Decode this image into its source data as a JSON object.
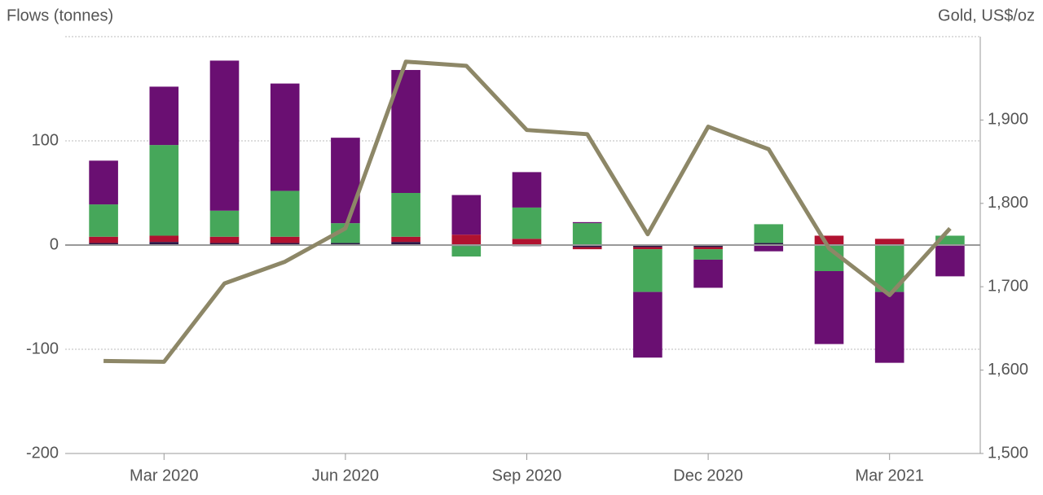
{
  "chart_data": {
    "type": "bar",
    "y_label": "Flows (tonnes)",
    "y2_label": "Gold, US$/oz",
    "categories": [
      null,
      "Mar 2020",
      null,
      null,
      "Jun 2020",
      null,
      null,
      "Sep 2020",
      null,
      null,
      "Dec 2020",
      null,
      null,
      "Mar 2021",
      null
    ],
    "stacked": true,
    "series": [
      {
        "color": "#2b1747",
        "values": [
          2,
          3,
          2,
          2,
          2,
          3,
          -1,
          -1,
          -2,
          -2,
          -2,
          2,
          0,
          0,
          0
        ]
      },
      {
        "color": "#b01230",
        "values": [
          6,
          6,
          6,
          6,
          0,
          5,
          10,
          6,
          -2,
          -2,
          -2,
          0,
          9,
          6,
          0
        ]
      },
      {
        "color": "#46a75a",
        "values": [
          31,
          87,
          25,
          44,
          19,
          42,
          -10,
          30,
          21,
          -41,
          -10,
          18,
          -25,
          -45,
          9
        ]
      },
      {
        "color": "#6a0f72",
        "values": [
          42,
          56,
          144,
          103,
          82,
          118,
          38,
          34,
          1,
          -63,
          -27,
          -6,
          -70,
          -68,
          -30
        ]
      },
      {
        "type": "line",
        "axis": "y2",
        "color": "#8d8767",
        "values": [
          1611,
          1610,
          1704,
          1730,
          1770,
          1970,
          1965,
          1888,
          1883,
          1763,
          1892,
          1865,
          1746,
          1690,
          1770
        ]
      }
    ],
    "ylim": [
      -200,
      200
    ],
    "yticks": [
      -200,
      -100,
      0,
      100
    ],
    "y2lim": [
      1500,
      2000
    ],
    "y2ticks": [
      {
        "value": 1500,
        "label": "1,500"
      },
      {
        "value": 1600,
        "label": "1,600"
      },
      {
        "value": 1700,
        "label": "1,700"
      },
      {
        "value": 1800,
        "label": "1,800"
      },
      {
        "value": 1900,
        "label": "1,900"
      }
    ],
    "grid": true
  }
}
